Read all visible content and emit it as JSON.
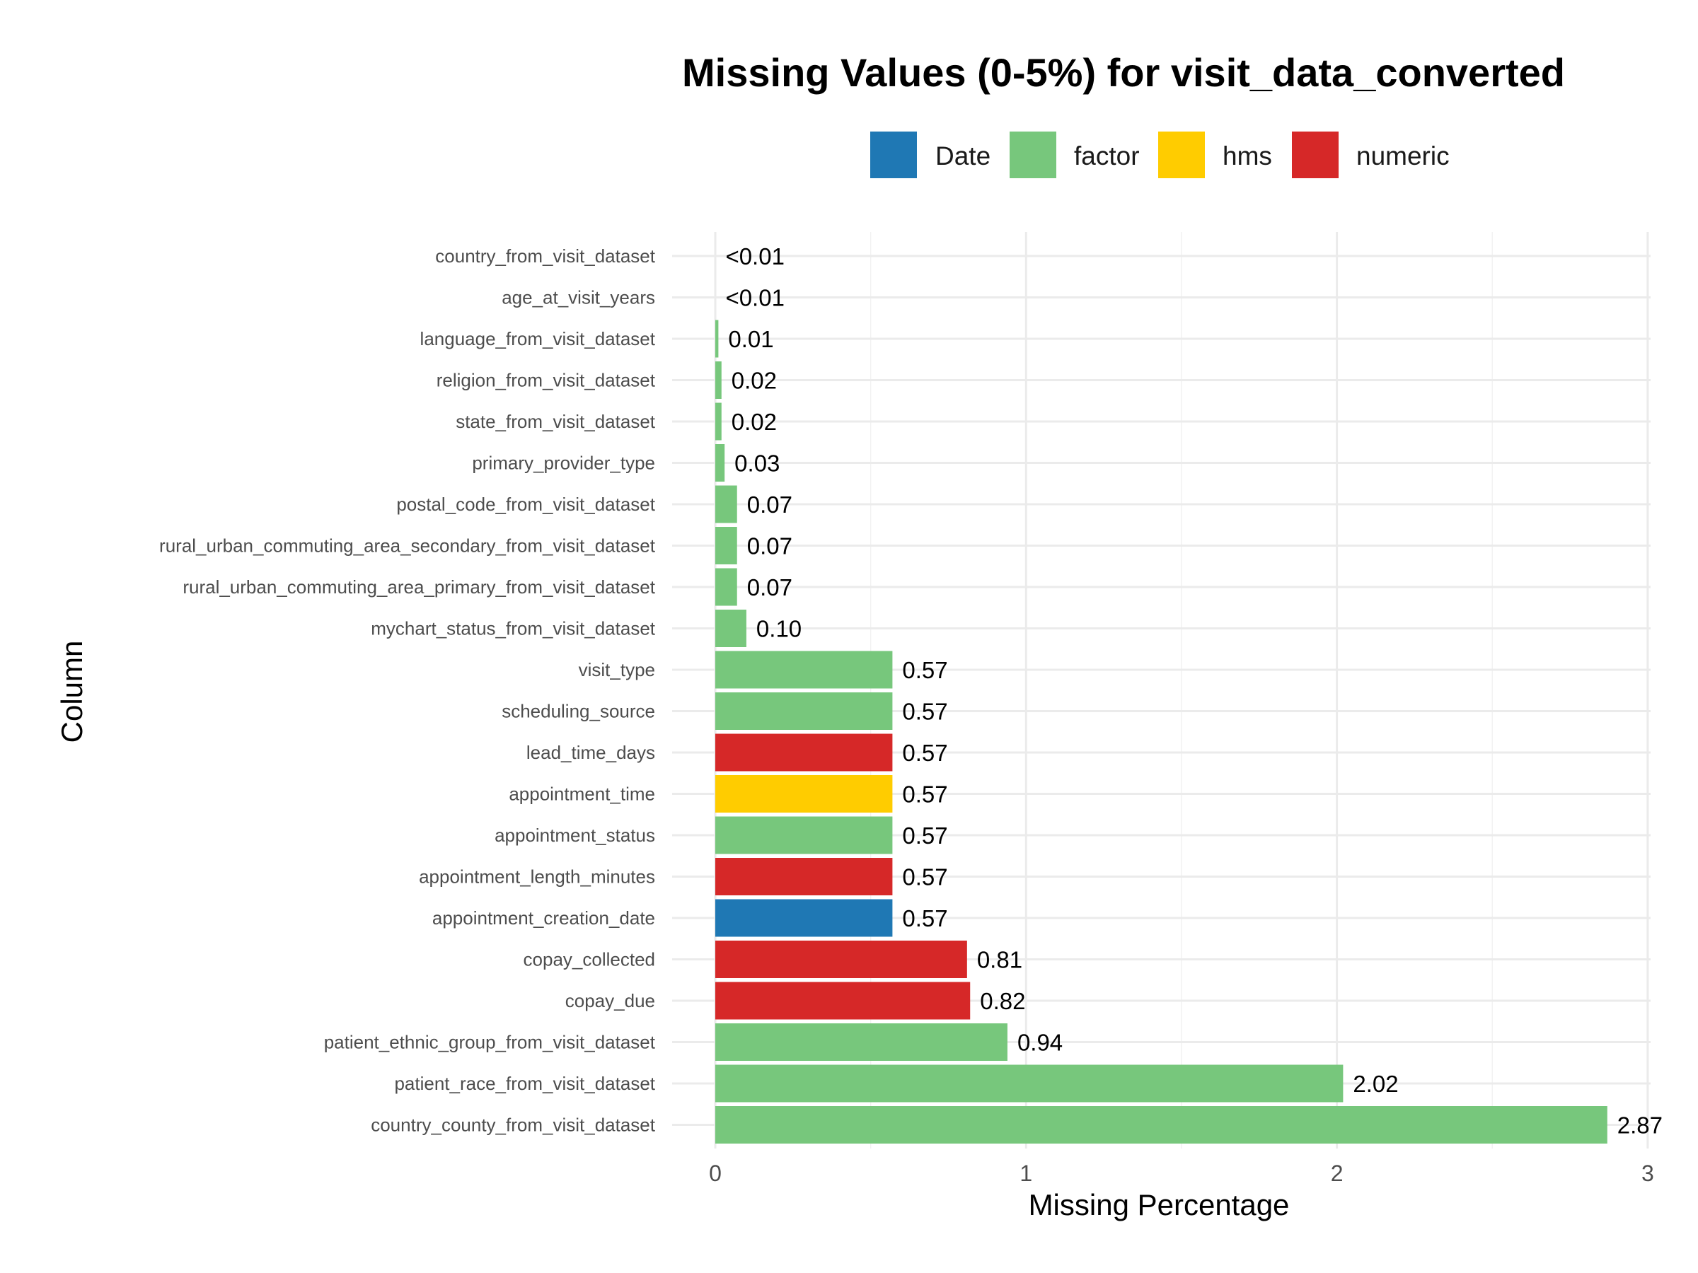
{
  "chart_data": {
    "type": "bar",
    "orientation": "horizontal",
    "title": "Missing Values (0-5%) for visit_data_converted",
    "xlabel": "Missing Percentage",
    "ylabel": "Column",
    "xlim": [
      0,
      3
    ],
    "x_ticks": [
      "0",
      "1",
      "2",
      "3"
    ],
    "grid": true,
    "legend": {
      "position": "top",
      "entries": [
        {
          "name": "Date",
          "color": "#1f78b4"
        },
        {
          "name": "factor",
          "color": "#77c77c"
        },
        {
          "name": "hms",
          "color": "#ffcc00"
        },
        {
          "name": "numeric",
          "color": "#d62828"
        }
      ]
    },
    "bars": [
      {
        "category": "country_from_visit_dataset",
        "value": 0.001,
        "label": "<0.01",
        "type": "factor"
      },
      {
        "category": "age_at_visit_years",
        "value": 0.001,
        "label": "<0.01",
        "type": "numeric"
      },
      {
        "category": "language_from_visit_dataset",
        "value": 0.01,
        "label": "0.01",
        "type": "factor"
      },
      {
        "category": "religion_from_visit_dataset",
        "value": 0.02,
        "label": "0.02",
        "type": "factor"
      },
      {
        "category": "state_from_visit_dataset",
        "value": 0.02,
        "label": "0.02",
        "type": "factor"
      },
      {
        "category": "primary_provider_type",
        "value": 0.03,
        "label": "0.03",
        "type": "factor"
      },
      {
        "category": "postal_code_from_visit_dataset",
        "value": 0.07,
        "label": "0.07",
        "type": "factor"
      },
      {
        "category": "rural_urban_commuting_area_secondary_from_visit_dataset",
        "value": 0.07,
        "label": "0.07",
        "type": "factor"
      },
      {
        "category": "rural_urban_commuting_area_primary_from_visit_dataset",
        "value": 0.07,
        "label": "0.07",
        "type": "factor"
      },
      {
        "category": "mychart_status_from_visit_dataset",
        "value": 0.1,
        "label": "0.10",
        "type": "factor"
      },
      {
        "category": "visit_type",
        "value": 0.57,
        "label": "0.57",
        "type": "factor"
      },
      {
        "category": "scheduling_source",
        "value": 0.57,
        "label": "0.57",
        "type": "factor"
      },
      {
        "category": "lead_time_days",
        "value": 0.57,
        "label": "0.57",
        "type": "numeric"
      },
      {
        "category": "appointment_time",
        "value": 0.57,
        "label": "0.57",
        "type": "hms"
      },
      {
        "category": "appointment_status",
        "value": 0.57,
        "label": "0.57",
        "type": "factor"
      },
      {
        "category": "appointment_length_minutes",
        "value": 0.57,
        "label": "0.57",
        "type": "numeric"
      },
      {
        "category": "appointment_creation_date",
        "value": 0.57,
        "label": "0.57",
        "type": "Date"
      },
      {
        "category": "copay_collected",
        "value": 0.81,
        "label": "0.81",
        "type": "numeric"
      },
      {
        "category": "copay_due",
        "value": 0.82,
        "label": "0.82",
        "type": "numeric"
      },
      {
        "category": "patient_ethnic_group_from_visit_dataset",
        "value": 0.94,
        "label": "0.94",
        "type": "factor"
      },
      {
        "category": "patient_race_from_visit_dataset",
        "value": 2.02,
        "label": "2.02",
        "type": "factor"
      },
      {
        "category": "country_county_from_visit_dataset",
        "value": 2.87,
        "label": "2.87",
        "type": "factor"
      }
    ]
  }
}
